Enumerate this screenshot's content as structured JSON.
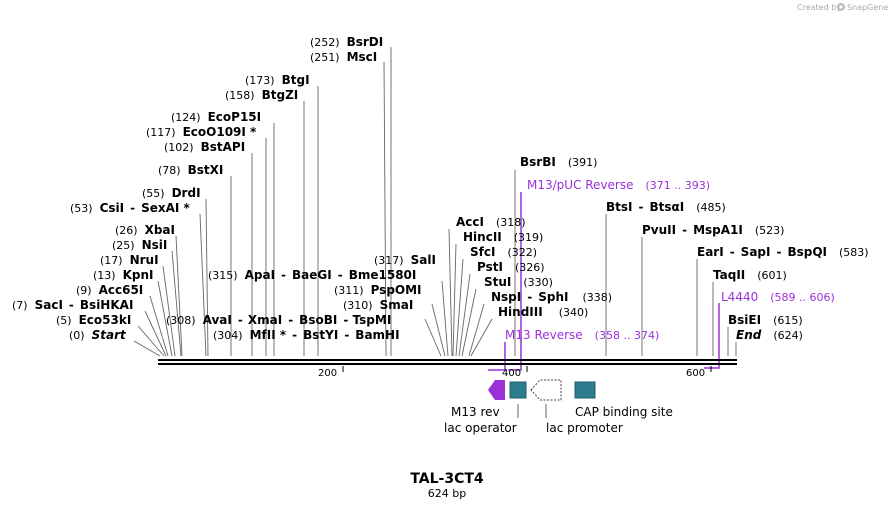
{
  "brand": {
    "created_by": "Created by",
    "name": "SnapGene"
  },
  "plasmid": {
    "name": "TAL-3CT4",
    "length": "624 bp"
  },
  "ruler": {
    "ticks": [
      "200",
      "400",
      "600"
    ]
  },
  "sites": [
    {
      "pos": "(252)",
      "name": "BsrDI"
    },
    {
      "pos": "(251)",
      "name": "MscI"
    },
    {
      "pos": "(173)",
      "name": "BtgI"
    },
    {
      "pos": "(158)",
      "name": "BtgZI"
    },
    {
      "pos": "(124)",
      "name": "EcoP15I"
    },
    {
      "pos": "(117)",
      "name": "EcoO109I *"
    },
    {
      "pos": "(102)",
      "name": "BstAPI"
    },
    {
      "pos": "(78)",
      "name": "BstXI"
    },
    {
      "pos": "(55)",
      "name": "DrdI"
    },
    {
      "pos": "(53)",
      "name": "CsiI",
      "name2": "SexAI *"
    },
    {
      "pos": "(26)",
      "name": "XbaI"
    },
    {
      "pos": "(25)",
      "name": "NsiI"
    },
    {
      "pos": "(17)",
      "name": "NruI"
    },
    {
      "pos": "(13)",
      "name": "KpnI"
    },
    {
      "pos": "(9)",
      "name": "Acc65I"
    },
    {
      "pos": "(7)",
      "name": "SacI",
      "name2": "BsiHKAI"
    },
    {
      "pos": "(5)",
      "name": "Eco53kI"
    },
    {
      "pos": "(0)",
      "name": "Start"
    },
    {
      "pos": "(315)",
      "name": "ApaI",
      "name2": "BaeGI",
      "name3": "Bme1580I"
    },
    {
      "pos": "(308)",
      "name": "AvaI",
      "name2": "XmaI",
      "name3": "BsoBI",
      "name4": "TspMI"
    },
    {
      "pos": "(304)",
      "name": "MfII *",
      "name2": "BstYI",
      "name3": "BamHI"
    },
    {
      "pos": "(317)",
      "name": "SalI"
    },
    {
      "pos": "(311)",
      "name": "PspOMI"
    },
    {
      "pos": "(310)",
      "name": "SmaI"
    },
    {
      "pos": "(318)",
      "name": "AccI"
    },
    {
      "pos": "(319)",
      "name": "HincII"
    },
    {
      "pos": "(322)",
      "name": "SfcI"
    },
    {
      "pos": "(326)",
      "name": "PstI"
    },
    {
      "pos": "(330)",
      "name": "StuI"
    },
    {
      "pos": "(338)",
      "name": "NspI",
      "name2": "SphI"
    },
    {
      "pos": "(340)",
      "name": "HindIII"
    },
    {
      "pos": "(391)",
      "name": "BsrBI"
    },
    {
      "pos": "(485)",
      "name": "BtsI",
      "name2": "BtsαI"
    },
    {
      "pos": "(523)",
      "name": "PvuII",
      "name2": "MspA1I"
    },
    {
      "pos": "(583)",
      "name": "EarI",
      "name2": "SapI",
      "name3": "BspQI"
    },
    {
      "pos": "(601)",
      "name": "TaqII"
    },
    {
      "pos": "(615)",
      "name": "BsiEI"
    },
    {
      "pos": "(624)",
      "name": "End"
    }
  ],
  "primers": [
    {
      "name": "M13/pUC Reverse",
      "range": "(371 .. 393)"
    },
    {
      "name": "M13 Reverse",
      "range": "(358 .. 374)"
    },
    {
      "name": "L4440",
      "range": "(589 .. 606)"
    }
  ],
  "features": [
    {
      "name": "M13 rev"
    },
    {
      "name": "lac operator"
    },
    {
      "name": "lac promoter"
    },
    {
      "name": "CAP binding site"
    }
  ],
  "colors": {
    "primer": "#9b30d9",
    "operator": "#2e7d8f",
    "promoter_outline": "#444444",
    "backbone": "#000000"
  }
}
